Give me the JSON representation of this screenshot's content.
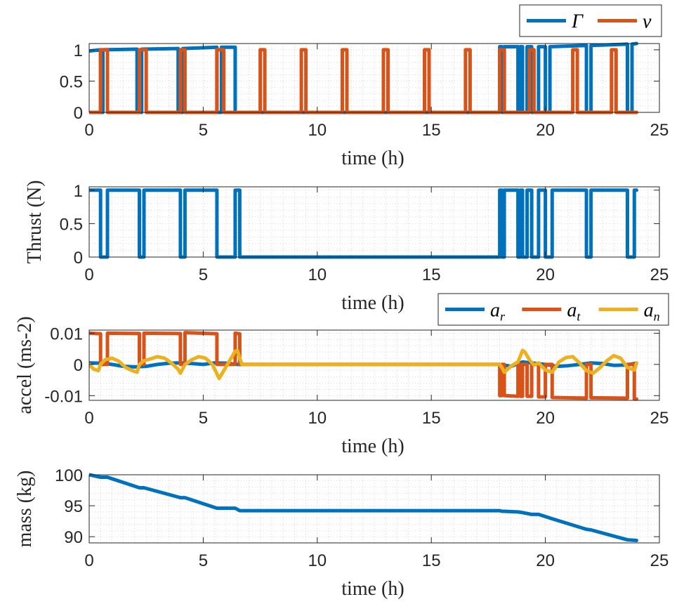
{
  "colors": {
    "blue": "#0072BD",
    "orange": "#D95319",
    "yellow": "#EDB120",
    "grid": "#BFBFBF",
    "axis": "#262626"
  },
  "chart_data": [
    {
      "type": "line",
      "id": "p1",
      "xlabel": "time (h)",
      "ylabel": "",
      "xlim": [
        0,
        24
      ],
      "ylim": [
        0,
        1.1
      ],
      "xticks": [
        0,
        5,
        10,
        15,
        20,
        25
      ],
      "yticks": [
        0,
        0.5,
        1
      ],
      "ytick_labels": [
        "0",
        "0.5",
        "1"
      ],
      "legend": {
        "placement": "top-right-outside",
        "entries": [
          "Γ",
          "ν"
        ]
      },
      "series": [
        {
          "name": "Γ",
          "color": "#0072BD",
          "x": [
            0.0,
            0.5,
            0.5,
            0.6,
            0.6,
            2.1,
            2.1,
            2.3,
            2.3,
            3.9,
            3.9,
            4.1,
            4.1,
            5.6,
            5.6,
            5.8,
            5.8,
            6.4,
            6.4,
            6.7,
            6.7,
            18.0,
            18.0,
            18.1,
            18.1,
            18.2,
            18.2,
            18.8,
            18.8,
            18.9,
            18.9,
            19.0,
            19.0,
            19.2,
            19.2,
            19.4,
            19.4,
            19.7,
            19.7,
            20.0,
            20.0,
            20.2,
            20.2,
            21.8,
            21.8,
            22.0,
            22.0,
            23.6,
            23.6,
            23.8,
            23.8,
            24.0
          ],
          "y": [
            0.98,
            1.0,
            0,
            0,
            1.0,
            1.01,
            0,
            0,
            1.01,
            1.02,
            0,
            0,
            1.02,
            1.04,
            0,
            0,
            1.04,
            1.04,
            0,
            0,
            0,
            0,
            1.05,
            1.05,
            0,
            0,
            1.05,
            1.05,
            0,
            0,
            1.05,
            1.05,
            0,
            0,
            1.05,
            1.05,
            0,
            0,
            1.05,
            1.05,
            0,
            0,
            1.05,
            1.07,
            0,
            0,
            1.07,
            1.09,
            0,
            0,
            1.09,
            1.1
          ]
        },
        {
          "name": "ν",
          "color": "#D95319",
          "x": [
            0.0,
            0.5,
            0.5,
            0.8,
            0.8,
            2.2,
            2.2,
            2.5,
            2.5,
            4.0,
            4.0,
            4.2,
            4.2,
            5.6,
            5.6,
            5.9,
            5.9,
            7.5,
            7.5,
            7.7,
            7.7,
            9.3,
            9.3,
            9.5,
            9.5,
            11.1,
            11.1,
            11.3,
            11.3,
            12.9,
            12.9,
            13.1,
            13.1,
            14.7,
            14.7,
            14.9,
            14.9,
            16.5,
            16.5,
            16.7,
            16.7,
            18.0,
            18.0,
            18.2,
            18.2,
            19.3,
            19.3,
            19.5,
            19.5,
            21.2,
            21.2,
            21.4,
            21.4,
            22.9,
            22.9,
            23.1,
            23.1,
            24.0
          ],
          "y": [
            0,
            0,
            1,
            1,
            0,
            0,
            1,
            1,
            0,
            0,
            1,
            1,
            0,
            0,
            1,
            1,
            0,
            0,
            1,
            1,
            0,
            0,
            1,
            1,
            0,
            0,
            1,
            1,
            0,
            0,
            1,
            1,
            0,
            0,
            1,
            1,
            0,
            0,
            1,
            1,
            0,
            0,
            1,
            1,
            0,
            0,
            1,
            1,
            0,
            0,
            1,
            1,
            0,
            0,
            1,
            1,
            0,
            0
          ]
        }
      ]
    },
    {
      "type": "line",
      "id": "p2",
      "xlabel": "time (h)",
      "ylabel": "Thrust (N)",
      "xlim": [
        0,
        24
      ],
      "ylim": [
        0,
        1.05
      ],
      "xticks": [
        0,
        5,
        10,
        15,
        20,
        25
      ],
      "yticks": [
        0,
        0.5,
        1
      ],
      "ytick_labels": [
        "0",
        "0.5",
        "1"
      ],
      "series": [
        {
          "name": "Thrust",
          "color": "#0072BD",
          "x": [
            0.0,
            0.5,
            0.5,
            0.8,
            0.8,
            2.2,
            2.2,
            2.4,
            2.4,
            4.0,
            4.0,
            4.2,
            4.2,
            5.6,
            5.6,
            6.4,
            6.4,
            6.6,
            6.6,
            18.0,
            18.0,
            18.1,
            18.1,
            18.2,
            18.2,
            18.8,
            18.8,
            18.9,
            18.9,
            19.0,
            19.0,
            19.2,
            19.2,
            19.4,
            19.4,
            19.7,
            19.7,
            20.0,
            20.0,
            20.3,
            20.3,
            21.8,
            21.8,
            22.0,
            22.0,
            23.6,
            23.6,
            23.9,
            23.9,
            24.0
          ],
          "y": [
            1,
            1,
            0,
            0,
            1,
            1,
            0,
            0,
            1,
            1,
            0,
            0,
            1,
            1,
            0,
            0,
            1,
            1,
            0,
            0,
            1,
            1,
            0,
            0,
            1,
            1,
            0,
            0,
            1,
            1,
            0,
            0,
            1,
            1,
            0,
            0,
            1,
            1,
            0,
            0,
            1,
            1,
            0,
            0,
            1,
            1,
            0,
            0,
            1,
            1
          ]
        }
      ]
    },
    {
      "type": "line",
      "id": "p3",
      "xlabel": "time (h)",
      "ylabel": "accel (ms-2)",
      "xlim": [
        0,
        24
      ],
      "ylim": [
        -0.0115,
        0.011
      ],
      "xticks": [
        0,
        5,
        10,
        15,
        20,
        25
      ],
      "yticks": [
        -0.01,
        0,
        0.01
      ],
      "ytick_labels": [
        "-0.01",
        "0",
        "0.01"
      ],
      "legend": {
        "placement": "top-right-outside",
        "entries": [
          "a_r",
          "a_t",
          "a_n"
        ]
      },
      "series": [
        {
          "name": "a_r",
          "color": "#0072BD",
          "x": [
            0,
            0.5,
            1,
            1.5,
            2,
            2.5,
            3,
            3.5,
            4,
            4.5,
            5,
            5.5,
            6,
            6.5,
            6.7,
            18,
            18.5,
            19,
            19.5,
            20,
            20.5,
            21,
            21.5,
            22,
            22.5,
            23,
            23.5,
            24
          ],
          "y": [
            0.0005,
            0.0004,
            0.0,
            -0.0006,
            -0.0008,
            -0.0006,
            0.0,
            0.0004,
            0.0005,
            0.0003,
            0.0,
            0.0005,
            0.0004,
            0.0,
            0,
            0,
            -0.0006,
            0.0008,
            0.0004,
            0.0,
            -0.0006,
            -0.0004,
            0.0,
            0.0005,
            0.0003,
            -0.0003,
            -0.0002,
            0.0004
          ]
        },
        {
          "name": "a_t",
          "color": "#D95319",
          "x": [
            0.0,
            0.5,
            0.5,
            0.8,
            0.8,
            2.2,
            2.2,
            2.4,
            2.4,
            4.0,
            4.0,
            4.2,
            4.2,
            5.6,
            5.6,
            6.4,
            6.4,
            6.6,
            6.6,
            18.0,
            18.0,
            18.1,
            18.1,
            18.2,
            18.2,
            18.8,
            18.8,
            18.9,
            18.9,
            19.0,
            19.0,
            19.2,
            19.2,
            19.4,
            19.4,
            19.7,
            19.7,
            20.0,
            20.0,
            20.3,
            20.3,
            21.8,
            21.8,
            22.0,
            22.0,
            23.6,
            23.6,
            23.9,
            23.9,
            24.0
          ],
          "y": [
            0.01,
            0.0098,
            0,
            0,
            0.01,
            0.0099,
            0,
            0,
            0.01,
            0.0099,
            0,
            0,
            0.0102,
            0.0098,
            0,
            0,
            0.01,
            0.0098,
            0,
            0,
            -0.01,
            -0.01,
            0,
            0,
            -0.01,
            -0.0102,
            0,
            0,
            -0.0102,
            -0.0102,
            0,
            0,
            -0.0102,
            -0.0102,
            0,
            0,
            -0.0104,
            -0.0104,
            0,
            0,
            -0.0106,
            -0.0108,
            0,
            0,
            -0.0107,
            -0.0108,
            0,
            0,
            -0.0111,
            -0.0111
          ]
        },
        {
          "name": "a_n",
          "color": "#EDB120",
          "x": [
            0,
            0.2,
            0.4,
            0.5,
            0.7,
            1.0,
            1.3,
            1.6,
            1.9,
            2.1,
            2.2,
            2.4,
            2.7,
            3.0,
            3.3,
            3.6,
            3.9,
            4.0,
            4.2,
            4.5,
            4.8,
            5.1,
            5.4,
            5.6,
            5.7,
            6.4,
            6.5,
            6.6,
            6.7,
            18.0,
            18.1,
            18.2,
            18.5,
            18.8,
            19.0,
            19.1,
            19.3,
            19.5,
            19.7,
            20.0,
            20.3,
            20.6,
            20.9,
            21.2,
            21.5,
            21.8,
            22.1,
            22.4,
            22.7,
            23.0,
            23.3,
            23.6,
            23.9,
            24.0
          ],
          "y": [
            0,
            -0.0015,
            -0.002,
            0,
            0.0015,
            0.002,
            0.001,
            -0.001,
            -0.002,
            -0.0025,
            0,
            0.0012,
            0.0018,
            0.0025,
            0.002,
            0.0005,
            -0.0015,
            -0.0028,
            0,
            0.0015,
            0.0025,
            0.002,
            0.0,
            -0.003,
            -0.0045,
            0.0042,
            0.0045,
            0.002,
            0,
            0,
            -0.001,
            -0.0025,
            -0.0005,
            0.0008,
            0.0045,
            0.004,
            0.0015,
            -0.0002,
            0.0005,
            -0.0018,
            -0.0025,
            0.0008,
            0.0022,
            0.0025,
            0.0005,
            -0.002,
            -0.0028,
            -0.001,
            0.0012,
            0.0028,
            0.002,
            -0.001,
            -0.0018,
            0.0005
          ]
        }
      ]
    },
    {
      "type": "line",
      "id": "p4",
      "xlabel": "time (h)",
      "ylabel": "mass (kg)",
      "xlim": [
        0,
        24
      ],
      "ylim": [
        89,
        100
      ],
      "xticks": [
        0,
        5,
        10,
        15,
        20,
        25
      ],
      "yticks": [
        90,
        95,
        100
      ],
      "ytick_labels": [
        "90",
        "95",
        "100"
      ],
      "series": [
        {
          "name": "mass",
          "color": "#0072BD",
          "x": [
            0,
            0.5,
            0.8,
            2.2,
            2.4,
            4.0,
            4.2,
            5.6,
            6.4,
            6.6,
            18.0,
            18.1,
            18.2,
            18.8,
            19.0,
            19.4,
            19.7,
            20.3,
            21.8,
            22.0,
            23.6,
            24.0
          ],
          "y": [
            100,
            99.6,
            99.6,
            97.9,
            97.9,
            96.3,
            96.3,
            94.6,
            94.6,
            94.2,
            94.2,
            94.1,
            94.1,
            94.0,
            93.9,
            93.6,
            93.6,
            92.9,
            91.2,
            91.1,
            89.5,
            89.4
          ]
        }
      ]
    }
  ]
}
